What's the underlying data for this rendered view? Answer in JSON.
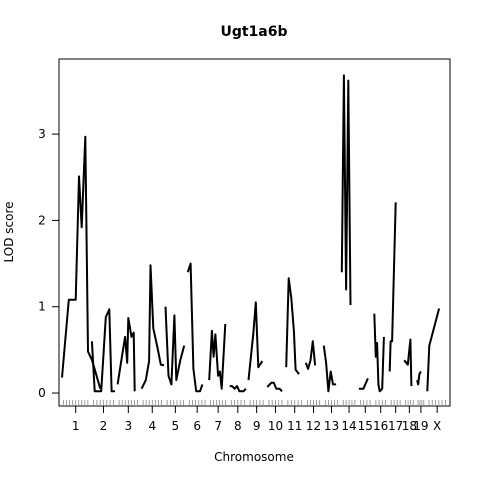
{
  "chart_data": {
    "type": "line",
    "title": "Ugt1a6b",
    "xlabel": "Chromosome",
    "ylabel": "LOD score",
    "ylim": [
      -0.15,
      3.87
    ],
    "y_ticks": [
      0,
      1,
      2,
      3
    ],
    "grid": false,
    "legend": "none",
    "chromosomes": [
      {
        "label": "1",
        "segments": [
          [
            [
              0.0,
              0.18
            ],
            [
              0.25,
              1.08
            ],
            [
              0.5,
              1.08
            ],
            [
              0.62,
              2.51
            ],
            [
              0.72,
              1.92
            ],
            [
              0.85,
              2.97
            ],
            [
              0.95,
              0.48
            ],
            [
              1.1,
              0.38
            ],
            [
              1.4,
              0.05
            ]
          ]
        ]
      },
      {
        "label": "2",
        "segments": [
          [
            [
              0.0,
              0.6
            ],
            [
              0.12,
              0.02
            ],
            [
              0.4,
              0.02
            ],
            [
              0.6,
              0.88
            ],
            [
              0.75,
              0.97
            ],
            [
              0.85,
              0.02
            ],
            [
              1.0,
              0.02
            ]
          ]
        ]
      },
      {
        "label": "3",
        "segments": [
          [
            [
              0.0,
              0.1
            ],
            [
              0.2,
              0.42
            ],
            [
              0.35,
              0.65
            ],
            [
              0.45,
              0.35
            ],
            [
              0.5,
              0.87
            ],
            [
              0.65,
              0.65
            ],
            [
              0.75,
              0.7
            ],
            [
              0.8,
              0.02
            ]
          ]
        ]
      },
      {
        "label": "4",
        "segments": [
          [
            [
              0.0,
              0.05
            ],
            [
              0.2,
              0.15
            ],
            [
              0.35,
              0.37
            ],
            [
              0.42,
              1.48
            ],
            [
              0.55,
              0.75
            ],
            [
              0.75,
              0.52
            ],
            [
              0.9,
              0.33
            ],
            [
              1.05,
              0.32
            ]
          ]
        ]
      },
      {
        "label": "5",
        "segments": [
          [
            [
              0.0,
              1.0
            ],
            [
              0.15,
              0.2
            ],
            [
              0.3,
              0.1
            ],
            [
              0.45,
              0.9
            ],
            [
              0.55,
              0.15
            ],
            [
              0.75,
              0.38
            ],
            [
              0.95,
              0.55
            ]
          ]
        ]
      },
      {
        "label": "6",
        "segments": [
          [
            [
              0.0,
              1.4
            ],
            [
              0.15,
              1.5
            ],
            [
              0.3,
              0.28
            ],
            [
              0.45,
              0.02
            ],
            [
              0.65,
              0.02
            ],
            [
              0.78,
              0.1
            ]
          ]
        ]
      },
      {
        "label": "7",
        "segments": [
          [
            [
              0.0,
              0.15
            ],
            [
              0.15,
              0.72
            ],
            [
              0.25,
              0.42
            ],
            [
              0.35,
              0.68
            ],
            [
              0.5,
              0.2
            ],
            [
              0.6,
              0.25
            ],
            [
              0.7,
              0.05
            ],
            [
              0.9,
              0.8
            ]
          ]
        ]
      },
      {
        "label": "8",
        "segments": [
          [
            [
              0.0,
              0.08
            ],
            [
              0.15,
              0.08
            ],
            [
              0.3,
              0.05
            ],
            [
              0.45,
              0.08
            ],
            [
              0.6,
              0.02
            ],
            [
              0.85,
              0.02
            ],
            [
              1.0,
              0.05
            ]
          ]
        ]
      },
      {
        "label": "9",
        "segments": [
          [
            [
              0.0,
              0.15
            ],
            [
              0.3,
              0.7
            ],
            [
              0.45,
              1.05
            ],
            [
              0.6,
              0.3
            ],
            [
              0.85,
              0.37
            ]
          ]
        ]
      },
      {
        "label": "10",
        "segments": [
          [
            [
              0.0,
              0.07
            ],
            [
              0.25,
              0.12
            ],
            [
              0.4,
              0.12
            ],
            [
              0.55,
              0.05
            ],
            [
              0.75,
              0.05
            ],
            [
              0.9,
              0.02
            ]
          ]
        ]
      },
      {
        "label": "11",
        "segments": [
          [
            [
              0.0,
              0.3
            ],
            [
              0.15,
              1.33
            ],
            [
              0.3,
              1.1
            ],
            [
              0.45,
              0.72
            ],
            [
              0.55,
              0.27
            ],
            [
              0.75,
              0.22
            ]
          ]
        ]
      },
      {
        "label": "12",
        "segments": [
          [
            [
              0.0,
              0.35
            ],
            [
              0.15,
              0.28
            ],
            [
              0.3,
              0.38
            ],
            [
              0.45,
              0.6
            ],
            [
              0.6,
              0.32
            ]
          ]
        ]
      },
      {
        "label": "13",
        "segments": [
          [
            [
              0.0,
              0.55
            ],
            [
              0.15,
              0.35
            ],
            [
              0.3,
              0.02
            ],
            [
              0.45,
              0.25
            ],
            [
              0.6,
              0.1
            ],
            [
              0.8,
              0.1
            ]
          ]
        ]
      },
      {
        "label": "14",
        "segments": [
          [
            [
              0.0,
              1.4
            ],
            [
              0.15,
              3.68
            ],
            [
              0.3,
              1.2
            ],
            [
              0.45,
              3.62
            ],
            [
              0.6,
              1.02
            ]
          ]
        ]
      },
      {
        "label": "15",
        "segments": [
          [
            [
              0.0,
              0.05
            ],
            [
              0.35,
              0.05
            ],
            [
              0.7,
              0.17
            ]
          ]
        ]
      },
      {
        "label": "16",
        "segments": [
          [
            [
              0.0,
              0.92
            ],
            [
              0.12,
              0.42
            ],
            [
              0.22,
              0.58
            ],
            [
              0.32,
              0.1
            ],
            [
              0.42,
              0.02
            ],
            [
              0.62,
              0.05
            ],
            [
              0.75,
              0.65
            ]
          ]
        ]
      },
      {
        "label": "17",
        "segments": [
          [
            [
              0.0,
              0.25
            ],
            [
              0.08,
              0.6
            ],
            [
              0.2,
              0.6
            ],
            [
              0.5,
              2.21
            ]
          ]
        ]
      },
      {
        "label": "18",
        "segments": [
          [
            [
              0.0,
              0.38
            ],
            [
              0.35,
              0.33
            ],
            [
              0.6,
              0.62
            ],
            [
              0.7,
              0.08
            ]
          ]
        ]
      },
      {
        "label": "19",
        "segments": [
          [
            [
              0.0,
              0.15
            ],
            [
              0.15,
              0.1
            ],
            [
              0.3,
              0.22
            ],
            [
              0.5,
              0.25
            ]
          ]
        ]
      },
      {
        "label": "X",
        "segments": [
          [
            [
              0.0,
              0.02
            ],
            [
              0.1,
              0.55
            ],
            [
              0.3,
              0.72
            ],
            [
              0.6,
              0.98
            ]
          ]
        ]
      }
    ]
  }
}
